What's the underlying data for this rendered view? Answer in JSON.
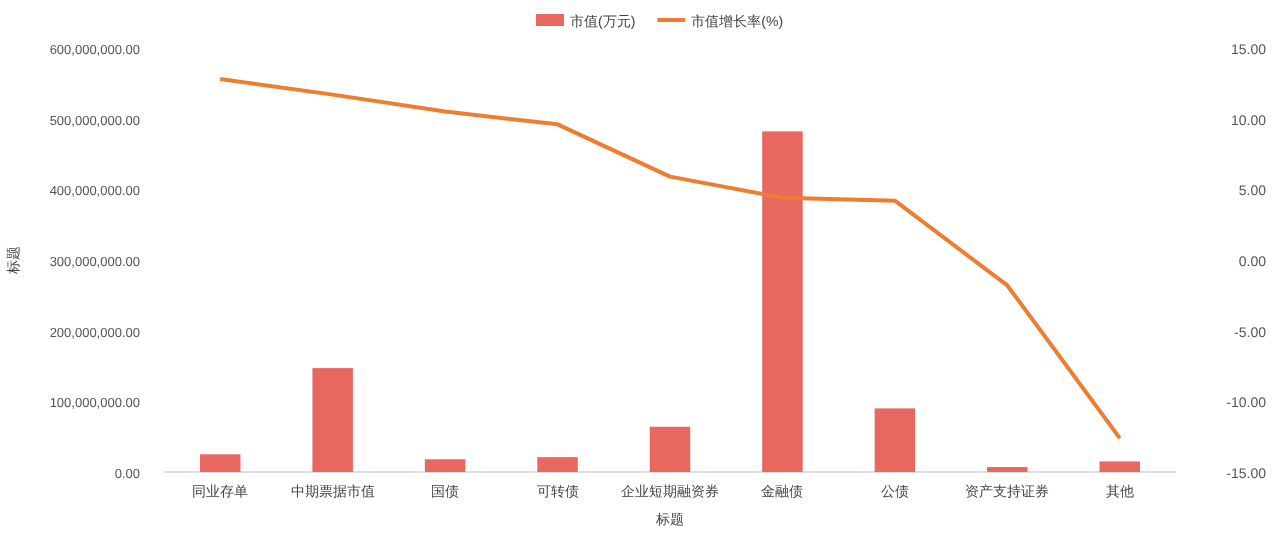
{
  "chart_data": {
    "type": "bar",
    "xlabel": "标题",
    "ylabel": "标题",
    "categories": [
      "同业存单",
      "中期票据市值",
      "国债",
      "可转债",
      "企业短期融资券",
      "金融债",
      "公债",
      "资产支持证券",
      "其他"
    ],
    "series": [
      {
        "name": "市值(万元)",
        "color": "#e8675f",
        "values": [
          25000000,
          147000000,
          18000000,
          21000000,
          64000000,
          482000000,
          90000000,
          7000000,
          15000000
        ]
      },
      {
        "name": "市值增长率(%)",
        "type": "line",
        "axis": "y2",
        "color": "#ed7d31",
        "values": [
          12.8,
          11.7,
          10.5,
          9.6,
          5.9,
          4.4,
          4.2,
          -1.8,
          -12.6
        ]
      }
    ],
    "ylim": [
      0,
      600000000
    ],
    "yticks": [
      {
        "value": 0,
        "label": "0.00"
      },
      {
        "value": 100000000,
        "label": "100,000,000.00"
      },
      {
        "value": 200000000,
        "label": "200,000,000.00"
      },
      {
        "value": 300000000,
        "label": "300,000,000.00"
      },
      {
        "value": 400000000,
        "label": "400,000,000.00"
      },
      {
        "value": 500000000,
        "label": "500,000,000.00"
      },
      {
        "value": 600000000,
        "label": "600,000,000.00"
      }
    ],
    "y2lim": [
      -15,
      15
    ],
    "y2ticks": [
      {
        "value": -15,
        "label": "-15.00"
      },
      {
        "value": -10,
        "label": "-10.00"
      },
      {
        "value": -5,
        "label": "-5.00"
      },
      {
        "value": 0,
        "label": "0.00"
      },
      {
        "value": 5,
        "label": "5.00"
      },
      {
        "value": 10,
        "label": "10.00"
      },
      {
        "value": 15,
        "label": "15.00"
      }
    ],
    "legend": "top",
    "grid": false
  }
}
